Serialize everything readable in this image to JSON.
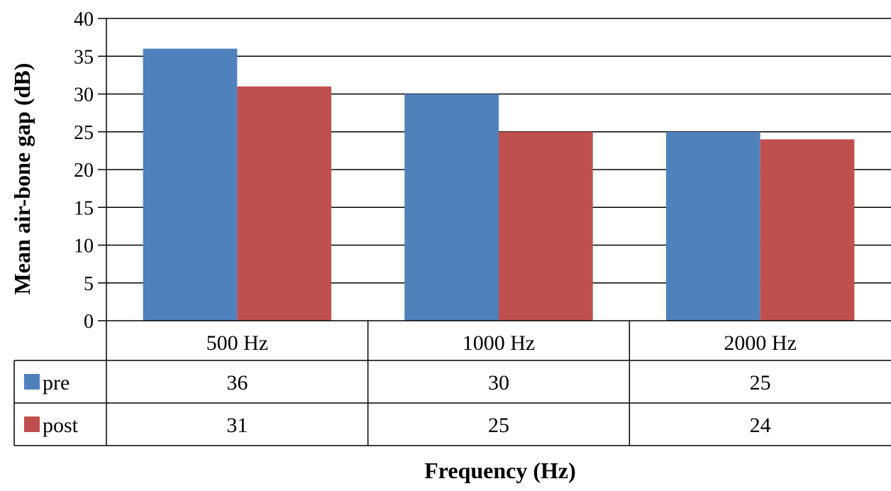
{
  "chart_data": {
    "type": "bar",
    "xlabel": "Frequency (Hz)",
    "ylabel": "Mean air-bone gap (dB)",
    "categories": [
      "500 Hz",
      "1000 Hz",
      "2000 Hz"
    ],
    "series": [
      {
        "name": "pre",
        "values": [
          36,
          30,
          25
        ],
        "color": "#4F81BD"
      },
      {
        "name": "post",
        "values": [
          31,
          25,
          24
        ],
        "color": "#C0504D"
      }
    ],
    "ylim": [
      0,
      40
    ],
    "yticks": [
      0,
      5,
      10,
      15,
      20,
      25,
      30,
      35,
      40
    ],
    "grid": true,
    "legend_placement": "data-table",
    "data_table": true
  }
}
